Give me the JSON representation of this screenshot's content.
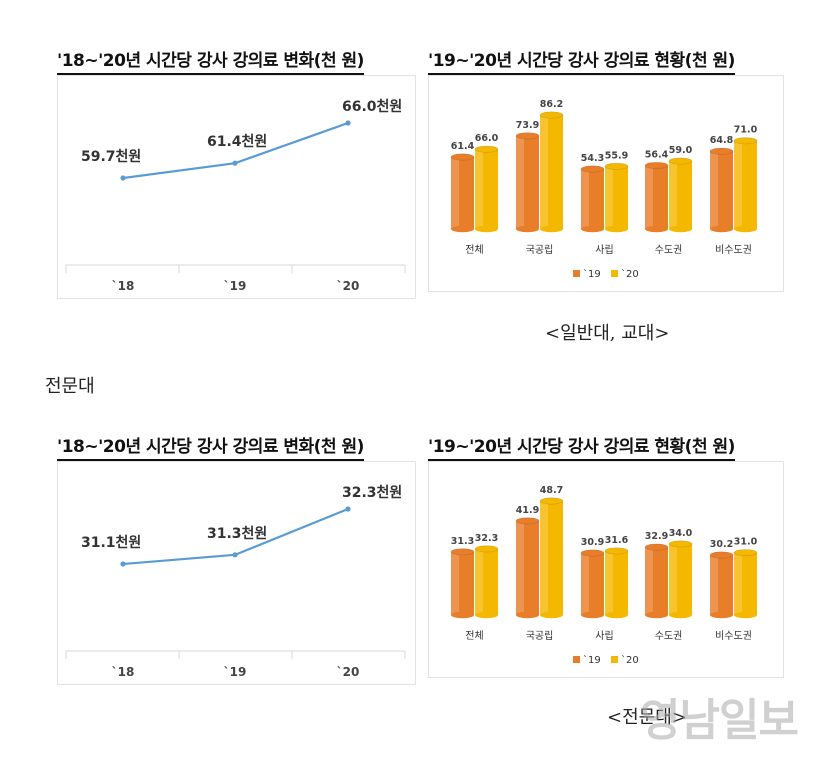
{
  "colors": {
    "line": "#5b9bd5",
    "y19": "#e87d2a",
    "y20": "#f5b800"
  },
  "top": {
    "line_title": "'18~'20년 시간당 강사 강의료 변화(천 원)",
    "bar_title": "'19~'20년 시간당 강사 강의료 현황(천 원)",
    "caption": "<일반대, 교대>"
  },
  "section_label": "전문대",
  "bottom": {
    "line_title": "'18~'20년 시간당 강사 강의료 변화(천 원)",
    "bar_title": "'19~'20년 시간당 강사 강의료 현황(천 원)",
    "caption": "<전문대>"
  },
  "watermark": "영남일보",
  "chart_data": [
    {
      "type": "line",
      "title": "'18~'20년 시간당 강사 강의료 변화(천 원)",
      "x": [
        "`18",
        "`19",
        "`20"
      ],
      "y": [
        59.7,
        61.4,
        66.0
      ],
      "labels": [
        "59.7천원",
        "61.4천원",
        "66.0천원"
      ],
      "grid": false
    },
    {
      "type": "bar",
      "title": "'19~'20년 시간당 강사 강의료 현황(천 원)",
      "categories": [
        "전체",
        "국공립",
        "사립",
        "수도권",
        "비수도권"
      ],
      "series": [
        {
          "name": "`19",
          "values": [
            61.4,
            73.9,
            54.3,
            56.4,
            64.8
          ]
        },
        {
          "name": "`20",
          "values": [
            66.0,
            86.2,
            55.9,
            59.0,
            71.0
          ]
        }
      ],
      "legend": "bottom"
    },
    {
      "type": "line",
      "title": "'18~'20년 시간당 강사 강의료 변화(천 원)",
      "x": [
        "`18",
        "`19",
        "`20"
      ],
      "y": [
        31.1,
        31.3,
        32.3
      ],
      "labels": [
        "31.1천원",
        "31.3천원",
        "32.3천원"
      ],
      "grid": false
    },
    {
      "type": "bar",
      "title": "'19~'20년 시간당 강사 강의료 현황(천 원)",
      "categories": [
        "전체",
        "국공립",
        "사립",
        "수도권",
        "비수도권"
      ],
      "series": [
        {
          "name": "`19",
          "values": [
            31.3,
            41.9,
            30.9,
            32.9,
            30.2
          ]
        },
        {
          "name": "`20",
          "values": [
            32.3,
            48.7,
            31.6,
            34.0,
            31.0
          ]
        }
      ],
      "legend": "bottom"
    }
  ]
}
